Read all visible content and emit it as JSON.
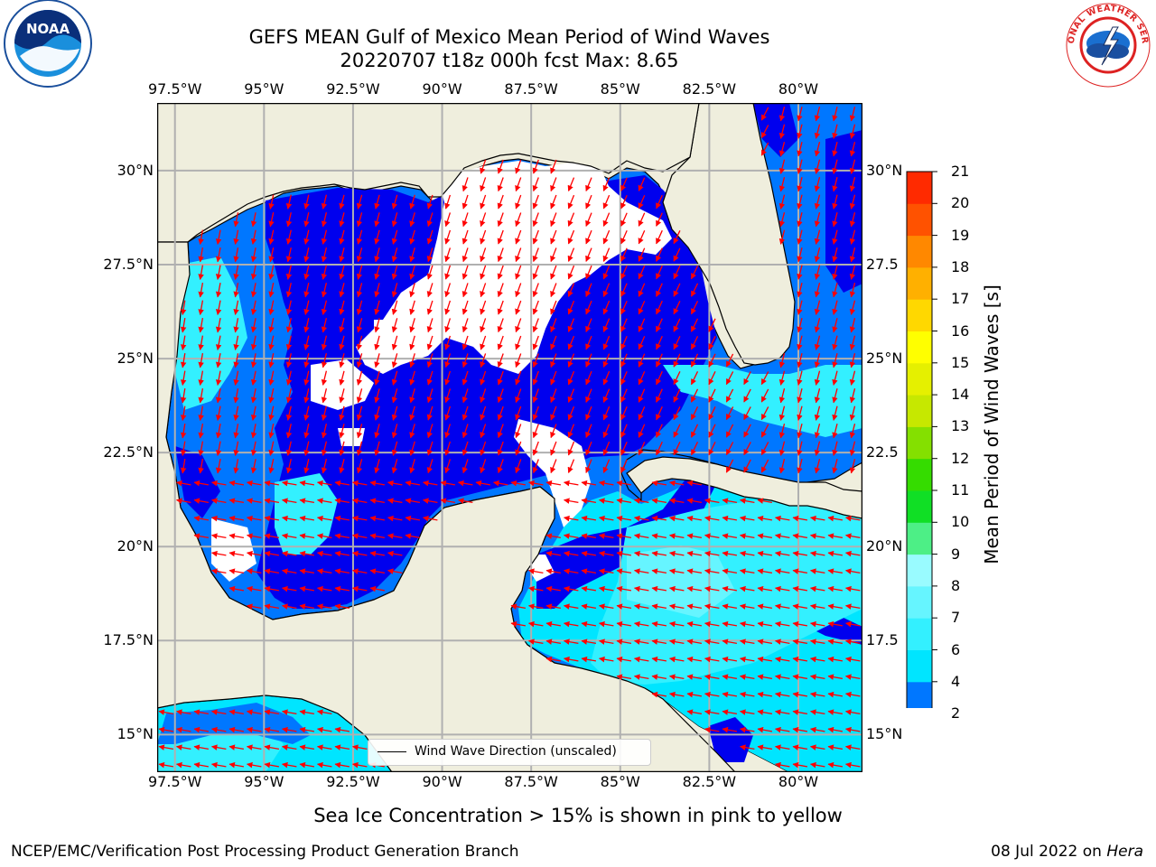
{
  "title": {
    "line1": "GEFS MEAN Gulf of Mexico Mean Period of Wind Waves",
    "line2": "20220707 t18z 000h fcst   Max: 8.65"
  },
  "logos": {
    "left": {
      "icon": "noaa-logo-icon",
      "text": "NOAA"
    },
    "right": {
      "icon": "nws-logo-icon",
      "text": "NATIONAL WEATHER SERVICE"
    }
  },
  "map": {
    "lon_range": [
      -98.0,
      -78.2
    ],
    "lat_range": [
      14.0,
      31.8
    ],
    "lon_ticks": [
      "97.5°W",
      "95°W",
      "92.5°W",
      "90°W",
      "87.5°W",
      "85°W",
      "82.5°W",
      "80°W"
    ],
    "lat_ticks_left": [
      "30°N",
      "27.5°N",
      "25°N",
      "22.5°N",
      "20°N",
      "17.5°N",
      "15°N"
    ],
    "lat_ticks_right": [
      "30°N",
      "27.5",
      "25°N",
      "22.5",
      "20°N",
      "17.5",
      "15°N"
    ],
    "land_color": "#efeedd",
    "arrow_color": "#ff0000",
    "gridlines": true
  },
  "colorbar": {
    "label": "Mean Period of Wind Waves [s]",
    "ticks": [
      "2",
      "4",
      "6",
      "7",
      "8",
      "9",
      "10",
      "11",
      "12",
      "13",
      "14",
      "15",
      "16",
      "17",
      "18",
      "19",
      "20",
      "21"
    ],
    "colors": [
      "#0077ff",
      "#00e5ff",
      "#33f0ff",
      "#66f5ff",
      "#99fbff",
      "#4def86",
      "#10df25",
      "#35dc00",
      "#84e000",
      "#c6e800",
      "#e5f000",
      "#ffff00",
      "#ffd800",
      "#ffb000",
      "#ff8800",
      "#ff5200",
      "#ff2a00",
      "#ff0000"
    ],
    "extend_color": "#0000ee",
    "extend": "min"
  },
  "legend": {
    "label": "Wind Wave Direction (unscaled)"
  },
  "subtitle": "Sea Ice Concentration > 15% is shown in pink to yellow",
  "footer": {
    "left": "NCEP/EMC/Verification Post Processing Product Generation Branch",
    "date": "08 Jul 2022 on",
    "machine": "Hera"
  }
}
